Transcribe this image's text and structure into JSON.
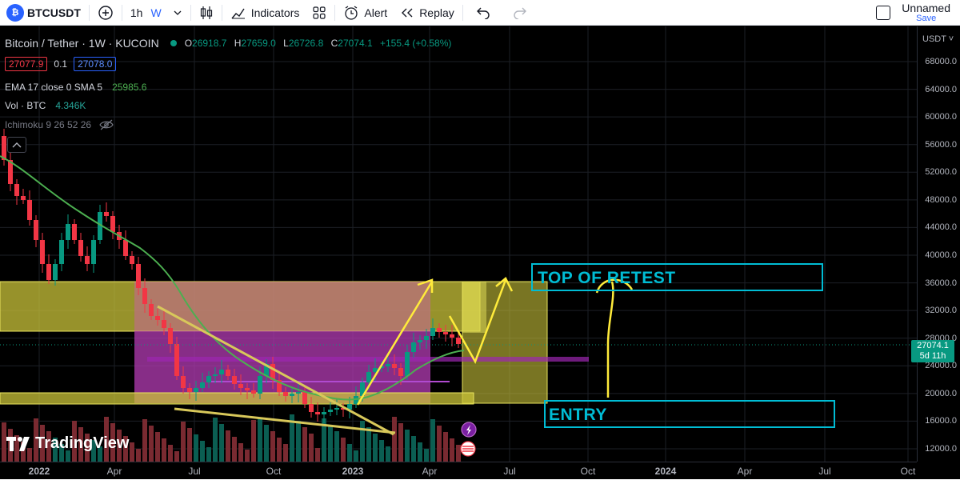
{
  "toolbar": {
    "symbol_badge": "₿",
    "symbol": "BTCUSDT",
    "interval_1": "1h",
    "interval_2": "W",
    "indicators_label": "Indicators",
    "alert_label": "Alert",
    "replay_label": "Replay",
    "layout_name": "Unnamed",
    "save_label": "Save"
  },
  "legend": {
    "title": "Bitcoin / Tether · 1W · KUCOIN",
    "o_key": "O",
    "o": "26918.7",
    "h_key": "H",
    "h": "27659.0",
    "l_key": "L",
    "l": "26726.8",
    "c_key": "C",
    "c": "27074.1",
    "change": "+155.4 (+0.58%)",
    "bid": "27077.9",
    "spread": "0.1",
    "ask": "27078.0",
    "ema_label": "EMA 17 close 0 SMA 5",
    "ema_value": "25985.6",
    "vol_label": "Vol · BTC",
    "vol_value": "4.346K",
    "ichimoku_label": "Ichimoku 9 26 52 26"
  },
  "price_scale": {
    "currency": "USDT ˅",
    "ticks": [
      "68000.0",
      "64000.0",
      "60000.0",
      "56000.0",
      "52000.0",
      "48000.0",
      "44000.0",
      "40000.0",
      "36000.0",
      "32000.0",
      "28000.0",
      "24000.0",
      "20000.0",
      "16000.0",
      "12000.0"
    ],
    "last_price": "27074.1",
    "countdown": "5d 11h"
  },
  "time_scale": {
    "ticks": [
      "2022",
      "Apr",
      "Jul",
      "Oct",
      "2023",
      "Apr",
      "Jul",
      "Oct",
      "2024",
      "Apr",
      "Jul",
      "Oct"
    ]
  },
  "annotations": {
    "retest": "TOP OF RETEST",
    "entry": "ENTRY"
  },
  "branding": {
    "logo_text": "TradingView"
  },
  "colors": {
    "up": "#089981",
    "down": "#f23645",
    "ema": "#4caf50",
    "annotation": "#00bcd4",
    "zone_yellow": "#d4d035",
    "zone_pink": "#d87aa0",
    "trendline": "#e6d36a",
    "arrow": "#ffeb3b"
  },
  "chart_data": {
    "type": "candlestick",
    "price_range": [
      11000,
      70000
    ],
    "last_close": 27074.1
  }
}
